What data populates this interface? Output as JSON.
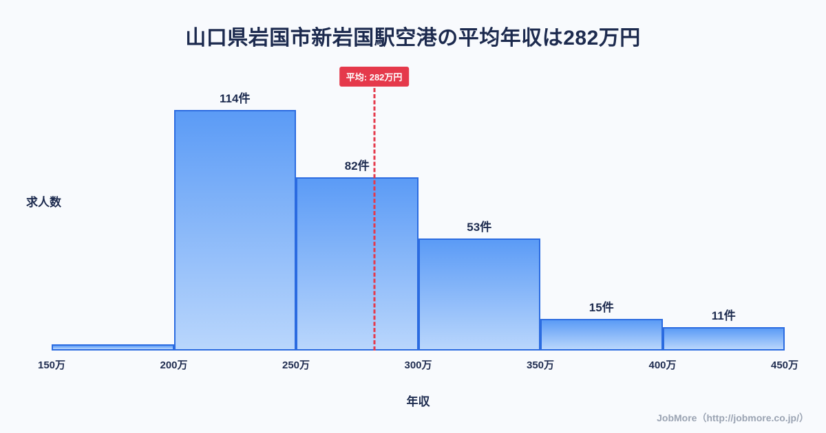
{
  "title": "山口県岩国市新岩国駅空港の平均年収は282万円",
  "footer": "JobMore（http://jobmore.co.jp/）",
  "colors": {
    "background": "#f8fafd",
    "title_text": "#1c2a4e",
    "bar_fill_top": "#5b9bf6",
    "bar_fill_bottom": "#b9d6fc",
    "bar_border": "#2b6be0",
    "average_line": "#e5394b",
    "footer_text": "#9aa3b2"
  },
  "chart_data": {
    "type": "bar",
    "title": "山口県岩国市新岩国駅空港の平均年収は282万円",
    "xlabel": "年収",
    "ylabel": "求人数",
    "x_ticks": [
      "150万",
      "200万",
      "250万",
      "300万",
      "350万",
      "400万",
      "450万"
    ],
    "x_range": [
      150,
      450
    ],
    "ylim": [
      0,
      120
    ],
    "grid": false,
    "legend": false,
    "bins": [
      {
        "range": "150万-200万",
        "count": 3,
        "label": ""
      },
      {
        "range": "200万-250万",
        "count": 114,
        "label": "114件"
      },
      {
        "range": "250万-300万",
        "count": 82,
        "label": "82件"
      },
      {
        "range": "300万-350万",
        "count": 53,
        "label": "53件"
      },
      {
        "range": "350万-400万",
        "count": 15,
        "label": "15件"
      },
      {
        "range": "400万-450万",
        "count": 11,
        "label": "11件"
      }
    ],
    "average": {
      "value": 282,
      "unit": "万円",
      "label": "平均: 282万円"
    }
  }
}
